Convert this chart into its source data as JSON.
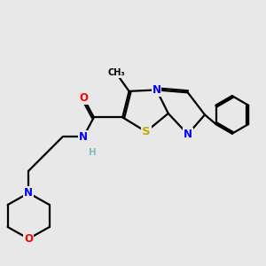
{
  "bg_color": "#e8e8e8",
  "bond_color": "#000000",
  "bond_width": 1.6,
  "atom_colors": {
    "N": "#0000ff",
    "O": "#ff0000",
    "S": "#ccaa00",
    "H": "#7fbfbf",
    "C": "#000000"
  },
  "font_size_atom": 8.5,
  "fig_w": 3.0,
  "fig_h": 3.0,
  "dpi": 100
}
